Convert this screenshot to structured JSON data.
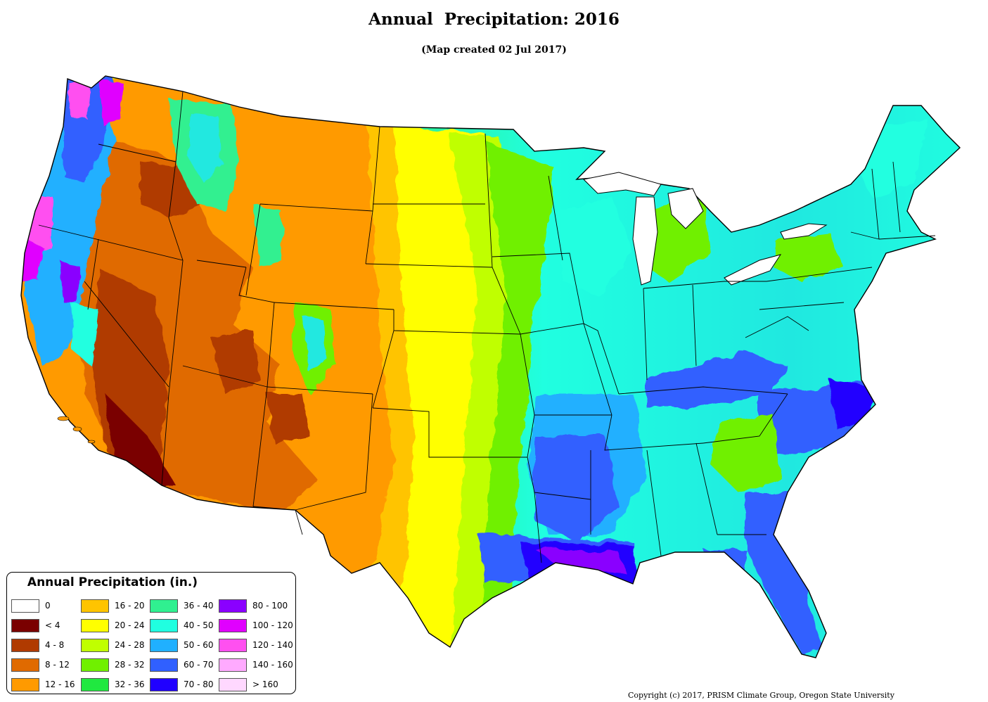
{
  "title": "Annual  Precipitation: 2016",
  "subtitle": "(Map created 02 Jul 2017)",
  "copyright": "Copyright (c) 2017, PRISM Climate Group, Oregon State University",
  "legend": {
    "title": "Annual Precipitation (in.)",
    "items": [
      {
        "label": "0",
        "color": "#ffffff"
      },
      {
        "label": "< 4",
        "color": "#7a0000"
      },
      {
        "label": "4 - 8",
        "color": "#b03a00"
      },
      {
        "label": "8 - 12",
        "color": "#e06a00"
      },
      {
        "label": "12 - 16",
        "color": "#ff9a00"
      },
      {
        "label": "16 - 20",
        "color": "#ffc400"
      },
      {
        "label": "20 - 24",
        "color": "#ffff00"
      },
      {
        "label": "24 - 28",
        "color": "#c0ff00"
      },
      {
        "label": "28 - 32",
        "color": "#70f000"
      },
      {
        "label": "32 - 36",
        "color": "#20e840"
      },
      {
        "label": "36 - 40",
        "color": "#30f090"
      },
      {
        "label": "40 - 50",
        "color": "#20ffe0"
      },
      {
        "label": "50 - 60",
        "color": "#20b0ff"
      },
      {
        "label": "60 - 70",
        "color": "#3060ff"
      },
      {
        "label": "70 - 80",
        "color": "#2000ff"
      },
      {
        "label": "80 - 100",
        "color": "#8a00ff"
      },
      {
        "label": "100 - 120",
        "color": "#e000ff"
      },
      {
        "label": "120 - 140",
        "color": "#ff50f0"
      },
      {
        "label": "140 - 160",
        "color": "#ffaaff"
      },
      {
        "label": "> 160",
        "color": "#ffd8ff"
      }
    ]
  }
}
